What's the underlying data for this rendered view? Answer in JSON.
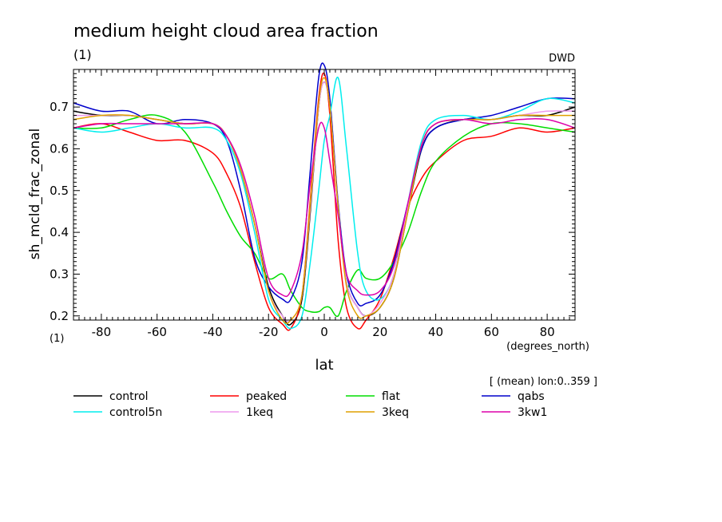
{
  "chart_data": {
    "type": "line",
    "title": "medium height cloud area fraction",
    "title_units": "(1)",
    "source_label": "DWD",
    "ylabel": "sh_mcld_frac_zonal",
    "y_units": "(1)",
    "xlabel": "lat",
    "x_units": "(degrees_north)",
    "averaging_note": "[ (mean) lon:0..359 ]",
    "xlim": [
      -90,
      90
    ],
    "ylim": [
      0.19,
      0.79
    ],
    "x_ticks": [
      "-80",
      "-60",
      "-40",
      "-20",
      "0",
      "20",
      "40",
      "60",
      "80"
    ],
    "x_tick_values": [
      -80,
      -60,
      -40,
      -20,
      0,
      20,
      40,
      60,
      80
    ],
    "y_ticks": [
      "0.2",
      "0.3",
      "0.4",
      "0.5",
      "0.6",
      "0.7"
    ],
    "y_tick_values": [
      0.2,
      0.3,
      0.4,
      0.5,
      0.6,
      0.7
    ],
    "legend_position": "bottom",
    "x": [
      -90,
      -80,
      -70,
      -60,
      -50,
      -40,
      -35,
      -30,
      -25,
      -20,
      -15,
      -12,
      -8,
      -5,
      -2,
      0,
      2,
      5,
      8,
      12,
      15,
      20,
      25,
      30,
      35,
      40,
      50,
      60,
      70,
      80,
      90
    ],
    "series": [
      {
        "name": "control",
        "color": "#000000",
        "values": [
          0.69,
          0.68,
          0.68,
          0.67,
          0.66,
          0.66,
          0.63,
          0.55,
          0.42,
          0.27,
          0.2,
          0.18,
          0.24,
          0.45,
          0.7,
          0.76,
          0.7,
          0.46,
          0.28,
          0.22,
          0.2,
          0.22,
          0.29,
          0.45,
          0.6,
          0.65,
          0.67,
          0.67,
          0.68,
          0.68,
          0.7
        ]
      },
      {
        "name": "peaked",
        "color": "#ff0000",
        "values": [
          0.65,
          0.66,
          0.64,
          0.62,
          0.62,
          0.59,
          0.54,
          0.46,
          0.33,
          0.22,
          0.18,
          0.17,
          0.25,
          0.48,
          0.72,
          0.78,
          0.68,
          0.38,
          0.22,
          0.17,
          0.19,
          0.24,
          0.34,
          0.46,
          0.53,
          0.57,
          0.62,
          0.63,
          0.65,
          0.64,
          0.65
        ]
      },
      {
        "name": "flat",
        "color": "#00dd00",
        "values": [
          0.65,
          0.65,
          0.67,
          0.68,
          0.64,
          0.52,
          0.45,
          0.39,
          0.35,
          0.29,
          0.3,
          0.26,
          0.22,
          0.21,
          0.21,
          0.22,
          0.22,
          0.2,
          0.26,
          0.31,
          0.29,
          0.29,
          0.33,
          0.4,
          0.5,
          0.57,
          0.63,
          0.66,
          0.66,
          0.65,
          0.64
        ]
      },
      {
        "name": "qabs",
        "color": "#0000cc",
        "values": [
          0.71,
          0.69,
          0.69,
          0.66,
          0.67,
          0.66,
          0.62,
          0.5,
          0.34,
          0.27,
          0.24,
          0.24,
          0.33,
          0.55,
          0.77,
          0.8,
          0.72,
          0.47,
          0.3,
          0.23,
          0.23,
          0.25,
          0.33,
          0.47,
          0.6,
          0.65,
          0.67,
          0.68,
          0.7,
          0.72,
          0.72
        ]
      },
      {
        "name": "control5n",
        "color": "#00eeee",
        "values": [
          0.65,
          0.64,
          0.65,
          0.66,
          0.65,
          0.65,
          0.62,
          0.54,
          0.4,
          0.24,
          0.19,
          0.17,
          0.2,
          0.33,
          0.5,
          0.62,
          0.68,
          0.77,
          0.6,
          0.35,
          0.26,
          0.24,
          0.3,
          0.47,
          0.62,
          0.67,
          0.68,
          0.67,
          0.69,
          0.72,
          0.71
        ]
      },
      {
        "name": "1keq",
        "color": "#ee99ee",
        "values": [
          0.68,
          0.68,
          0.68,
          0.67,
          0.66,
          0.66,
          0.63,
          0.55,
          0.42,
          0.26,
          0.2,
          0.19,
          0.25,
          0.46,
          0.7,
          0.76,
          0.7,
          0.46,
          0.28,
          0.22,
          0.2,
          0.23,
          0.3,
          0.46,
          0.61,
          0.66,
          0.67,
          0.67,
          0.68,
          0.69,
          0.69
        ]
      },
      {
        "name": "3keq",
        "color": "#e0a000",
        "values": [
          0.67,
          0.68,
          0.68,
          0.67,
          0.66,
          0.66,
          0.63,
          0.55,
          0.42,
          0.26,
          0.19,
          0.19,
          0.25,
          0.47,
          0.71,
          0.77,
          0.7,
          0.46,
          0.27,
          0.2,
          0.2,
          0.22,
          0.29,
          0.45,
          0.61,
          0.66,
          0.67,
          0.67,
          0.68,
          0.68,
          0.68
        ]
      },
      {
        "name": "3kw1",
        "color": "#dd00aa",
        "values": [
          0.65,
          0.66,
          0.66,
          0.66,
          0.66,
          0.66,
          0.63,
          0.56,
          0.44,
          0.29,
          0.25,
          0.26,
          0.35,
          0.52,
          0.65,
          0.65,
          0.57,
          0.44,
          0.3,
          0.26,
          0.25,
          0.26,
          0.32,
          0.47,
          0.61,
          0.66,
          0.67,
          0.66,
          0.67,
          0.67,
          0.65
        ]
      }
    ]
  }
}
